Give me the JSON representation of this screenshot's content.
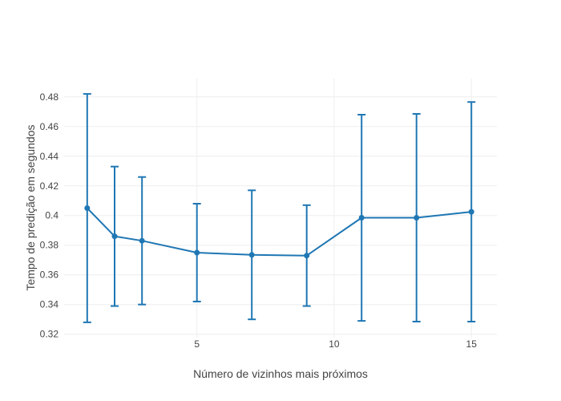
{
  "chart_data": {
    "type": "line",
    "title": "",
    "xlabel": "Número de vizinhos mais próximos",
    "ylabel": "Tempo de predição em segundos",
    "x": [
      1,
      2,
      3,
      5,
      7,
      9,
      11,
      13,
      15
    ],
    "y": [
      0.405,
      0.386,
      0.383,
      0.375,
      0.3735,
      0.373,
      0.3985,
      0.3985,
      0.4025
    ],
    "error_y": [
      0.077,
      0.047,
      0.043,
      0.033,
      0.0435,
      0.034,
      0.0695,
      0.07,
      0.074
    ],
    "xticks": [
      5,
      10,
      15
    ],
    "xtick_labels": [
      "5",
      "10",
      "15"
    ],
    "yticks": [
      0.32,
      0.34,
      0.36,
      0.38,
      0.4,
      0.42,
      0.44,
      0.46,
      0.48
    ],
    "ytick_labels": [
      "0.32",
      "0.34",
      "0.36",
      "0.38",
      "0.4",
      "0.42",
      "0.44",
      "0.46",
      "0.48"
    ],
    "xlim": [
      0.16,
      15.93
    ],
    "ylim": [
      0.3177,
      0.4923
    ],
    "grid": true,
    "legend": false,
    "line_color": "#1f77b4",
    "grid_color": "#eeeeee",
    "text_color": "#444444",
    "background_color": "#ffffff",
    "marker_radius": 3.5,
    "line_width": 2,
    "error_cap_half_width": 5
  }
}
